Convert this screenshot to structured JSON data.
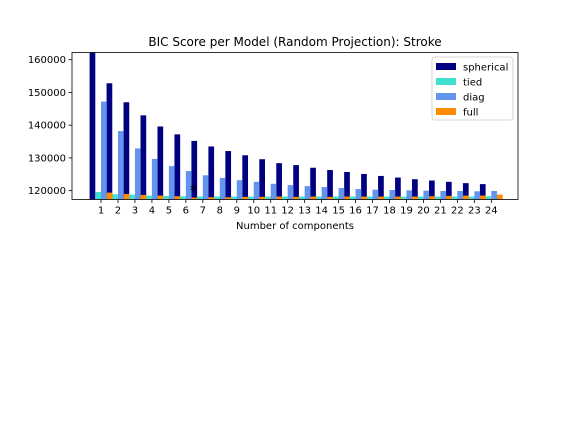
{
  "chart_data": {
    "type": "bar",
    "title": "BIC Score per Model (Random Projection): Stroke",
    "xlabel": "Number of components",
    "ylabel": "",
    "categories": [
      "1",
      "2",
      "3",
      "4",
      "5",
      "6",
      "7",
      "8",
      "9",
      "10",
      "11",
      "12",
      "13",
      "14",
      "15",
      "16",
      "17",
      "18",
      "19",
      "20",
      "21",
      "22",
      "23",
      "24"
    ],
    "ylim": [
      117300,
      162200
    ],
    "yticks": [
      120000,
      130000,
      140000,
      150000,
      160000
    ],
    "ytick_labels": [
      "120000",
      "130000",
      "140000",
      "150000",
      "160000"
    ],
    "grid": false,
    "legend_position": "top-right",
    "marker": {
      "symbol": "*",
      "category": "6"
    },
    "series": [
      {
        "name": "spherical",
        "color": "#000080",
        "values": [
          162200,
          152800,
          147000,
          143000,
          139600,
          137200,
          135200,
          133500,
          132100,
          130800,
          129600,
          128400,
          127800,
          127000,
          126300,
          125700,
          125100,
          124500,
          124000,
          123500,
          123100,
          122700,
          122300,
          122000
        ]
      },
      {
        "name": "tied",
        "color": "#40e0d0",
        "values": [
          119600,
          118900,
          118800,
          118500,
          118400,
          118300,
          118200,
          118200,
          118200,
          118200,
          118200,
          118200,
          118200,
          118200,
          118200,
          118200,
          118200,
          118200,
          118200,
          118200,
          118200,
          118200,
          118200,
          118300
        ]
      },
      {
        "name": "diag",
        "color": "#6495ed",
        "values": [
          147200,
          138200,
          132900,
          129700,
          127500,
          126000,
          124700,
          123900,
          123200,
          122700,
          122100,
          121700,
          121400,
          121100,
          120800,
          120500,
          120300,
          120200,
          120100,
          120000,
          119900,
          119900,
          119800,
          119900
        ]
      },
      {
        "name": "full",
        "color": "#ff8c00",
        "values": [
          119400,
          119000,
          118700,
          118500,
          118300,
          117900,
          118000,
          118000,
          118100,
          118100,
          118200,
          118100,
          118200,
          118100,
          118200,
          118200,
          118200,
          118200,
          118200,
          118300,
          118400,
          118500,
          118500,
          118800
        ]
      }
    ]
  }
}
